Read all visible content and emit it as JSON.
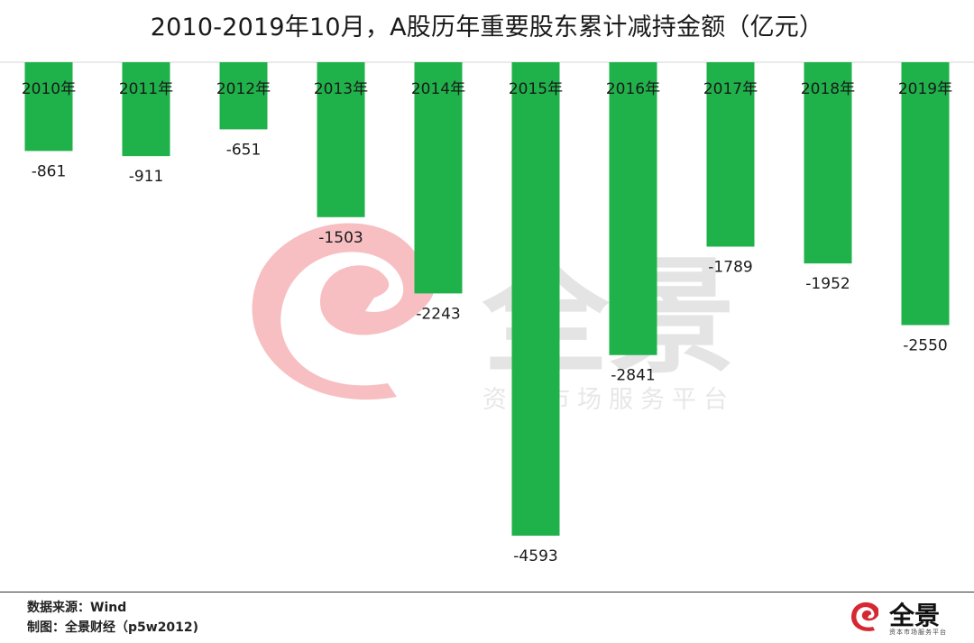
{
  "title": "2010-2019年10月，A股历年重要股东累计减持金额（亿元）",
  "watermark": {
    "main": "全景",
    "sub": "资本市场服务平台"
  },
  "footer": {
    "source": "数据来源：Wind",
    "credit": "制图：全景财经（p5w2012)"
  },
  "logo": {
    "name": "全景",
    "sub": "资本市场服务平台"
  },
  "colors": {
    "bar": "#1fb24a",
    "watermark_red": "#f08a8f",
    "watermark_gray": "#cfcfcf"
  },
  "chart_data": {
    "type": "bar",
    "title": "2010-2019年10月，A股历年重要股东累计减持金额（亿元）",
    "categories": [
      "2010年",
      "2011年",
      "2012年",
      "2013年",
      "2014年",
      "2015年",
      "2016年",
      "2017年",
      "2018年",
      "2019年"
    ],
    "values": [
      -861,
      -911,
      -651,
      -1503,
      -2243,
      -4593,
      -2841,
      -1789,
      -1952,
      -2550
    ],
    "value_labels": [
      "-861",
      "-911",
      "-651",
      "-1503",
      "-2243",
      "-4593",
      "-2841",
      "-1789",
      "-1952",
      "-2550"
    ],
    "xlabel": "",
    "ylabel": "",
    "grid": false,
    "legend": "none"
  }
}
